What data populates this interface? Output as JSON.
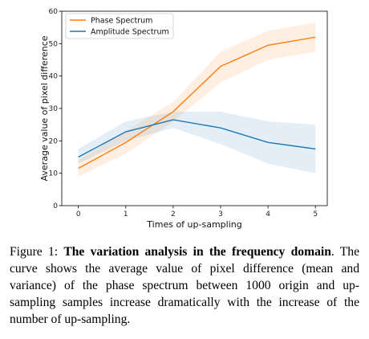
{
  "chart_data": {
    "type": "line",
    "xlabel": "Times of up-sampling",
    "ylabel": "Average value of pixel difference",
    "x": [
      0,
      1,
      2,
      3,
      4,
      5
    ],
    "xticks": [
      "0",
      "1",
      "2",
      "3",
      "4",
      "5"
    ],
    "yticks": [
      "0",
      "10",
      "20",
      "30",
      "40",
      "50",
      "60"
    ],
    "xlim": [
      -0.35,
      5.25
    ],
    "ylim": [
      0,
      60
    ],
    "legend_position": "top-left",
    "series": [
      {
        "name": "Phase Spectrum",
        "color": "#ff7f0e",
        "band_color": "#ff7f0e",
        "values": [
          11.5,
          19.5,
          29,
          43,
          49.5,
          52
        ],
        "lower": [
          9,
          16,
          26,
          38,
          45,
          47.5
        ],
        "upper": [
          14,
          23,
          32,
          47.5,
          54,
          56.5
        ]
      },
      {
        "name": "Amplitude Spectrum",
        "color": "#1f77b4",
        "band_color": "#1f77b4",
        "values": [
          15,
          22.8,
          26.5,
          24,
          19.5,
          17.5
        ],
        "lower": [
          13,
          20,
          24,
          19,
          13,
          10
        ],
        "upper": [
          17.5,
          26,
          29,
          29,
          26,
          25
        ]
      }
    ]
  },
  "caption": {
    "label": "Figure 1: ",
    "title": "The variation analysis in the frequency domain",
    "body": ". The curve shows the average value of pixel difference (mean and variance) of the phase spectrum between 1000 origin and up-sampling samples increase dramatically with the increase of the number of up-sampling."
  }
}
